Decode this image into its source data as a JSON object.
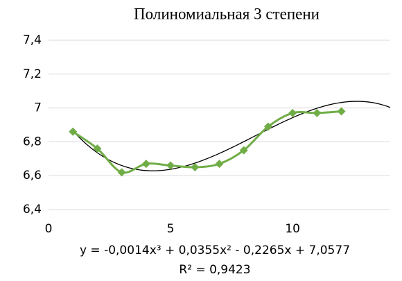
{
  "chart_data": {
    "type": "scatter",
    "title": "Полиномиальная 3 степени",
    "x": [
      1,
      2,
      3,
      4,
      5,
      6,
      7,
      8,
      9,
      10,
      11,
      12
    ],
    "series": [
      {
        "color": "#70ad47",
        "values": [
          6.86,
          6.76,
          6.62,
          6.67,
          6.66,
          6.65,
          6.67,
          6.75,
          6.89,
          6.97,
          6.97,
          6.98
        ]
      }
    ],
    "trendline": {
      "color": "#000000",
      "coefficients": [
        -0.0014,
        0.0355,
        -0.2265,
        7.0577
      ],
      "x_range": [
        1,
        14
      ],
      "equation": "y = -0,0014x³ + 0,0355x² - 0,2265x + 7,0577",
      "r_squared": "R² = 0,9423"
    },
    "xlim": [
      0,
      14
    ],
    "xticks": [
      0,
      5,
      10
    ],
    "ylim": [
      6.4,
      7.4
    ],
    "yticks": [
      {
        "value": 6.4,
        "label": "6,4"
      },
      {
        "value": 6.6,
        "label": "6,6"
      },
      {
        "value": 6.8,
        "label": "6,8"
      },
      7,
      {
        "value": 7.2,
        "label": "7,2"
      },
      {
        "value": 7.4,
        "label": "7,4"
      }
    ],
    "grid": true
  }
}
